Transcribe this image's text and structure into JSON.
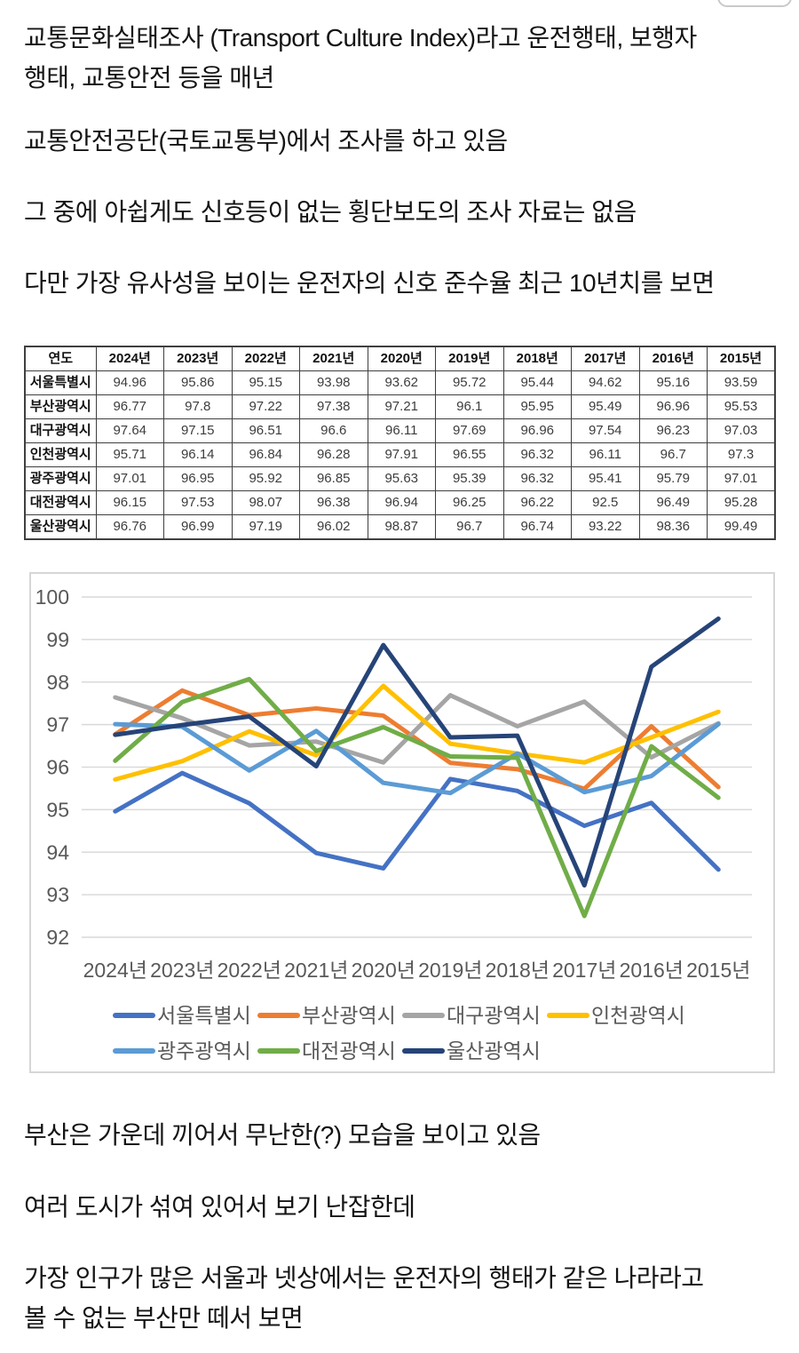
{
  "text_blocks": {
    "top": [
      {
        "lines": [
          "교통문화실태조사 (Transport Culture Index)라고 운전행태, 보행자",
          "행태, 교통안전 등을 매년"
        ]
      },
      {
        "lines": [
          "교통안전공단(국토교통부)에서 조사를 하고 있음"
        ]
      },
      {
        "lines": [
          "그 중에 아쉽게도 신호등이 없는 횡단보도의 조사 자료는 없음"
        ]
      },
      {
        "lines": [
          "다만 가장 유사성을 보이는 운전자의 신호 준수율 최근 10년치를 보면"
        ]
      }
    ],
    "bottom": [
      {
        "lines": [
          "부산은 가운데 끼어서 무난한(?) 모습을 보이고 있음"
        ]
      },
      {
        "lines": [
          "여러 도시가 섞여 있어서 보기 난잡한데"
        ]
      },
      {
        "lines": [
          "가장 인구가 많은 서울과 넷상에서는 운전자의 행태가 같은 나라라고",
          "볼 수 없는 부산만 떼서 보면"
        ]
      }
    ]
  },
  "table": {
    "header": [
      "연도",
      "2024년",
      "2023년",
      "2022년",
      "2021년",
      "2020년",
      "2019년",
      "2018년",
      "2017년",
      "2016년",
      "2015년"
    ]
  },
  "chart_data": {
    "type": "line",
    "title": "",
    "xlabel": "",
    "ylabel": "",
    "categories": [
      "2024년",
      "2023년",
      "2022년",
      "2021년",
      "2020년",
      "2019년",
      "2018년",
      "2017년",
      "2016년",
      "2015년"
    ],
    "series": [
      {
        "name": "서울특별시",
        "color": "#4472C4",
        "values": [
          94.96,
          95.86,
          95.15,
          93.98,
          93.62,
          95.72,
          95.44,
          94.62,
          95.16,
          93.59
        ]
      },
      {
        "name": "부산광역시",
        "color": "#ED7D31",
        "values": [
          96.77,
          97.8,
          97.22,
          97.38,
          97.21,
          96.1,
          95.95,
          95.49,
          96.96,
          95.53
        ]
      },
      {
        "name": "대구광역시",
        "color": "#A5A5A5",
        "values": [
          97.64,
          97.15,
          96.51,
          96.6,
          96.11,
          97.69,
          96.96,
          97.54,
          96.23,
          97.03
        ]
      },
      {
        "name": "인천광역시",
        "color": "#FFC000",
        "values": [
          95.71,
          96.14,
          96.84,
          96.28,
          97.91,
          96.55,
          96.32,
          96.11,
          96.7,
          97.3
        ]
      },
      {
        "name": "광주광역시",
        "color": "#5B9BD5",
        "values": [
          97.01,
          96.95,
          95.92,
          96.85,
          95.63,
          95.39,
          96.32,
          95.41,
          95.79,
          97.01
        ]
      },
      {
        "name": "대전광역시",
        "color": "#70AD47",
        "values": [
          96.15,
          97.53,
          98.07,
          96.38,
          96.94,
          96.25,
          96.22,
          92.5,
          96.49,
          95.28
        ]
      },
      {
        "name": "울산광역시",
        "color": "#264478",
        "values": [
          96.76,
          96.99,
          97.19,
          96.02,
          98.87,
          96.7,
          96.74,
          93.22,
          98.36,
          99.49
        ]
      }
    ],
    "ylim": [
      92,
      100
    ],
    "ytick_step": 1,
    "grid": true,
    "legend_position": "bottom",
    "legend_rows": [
      4,
      3
    ],
    "gridline_color": "#d9d9d9",
    "axis_label_color": "#595959",
    "frame_color": "#d6d6d6"
  }
}
